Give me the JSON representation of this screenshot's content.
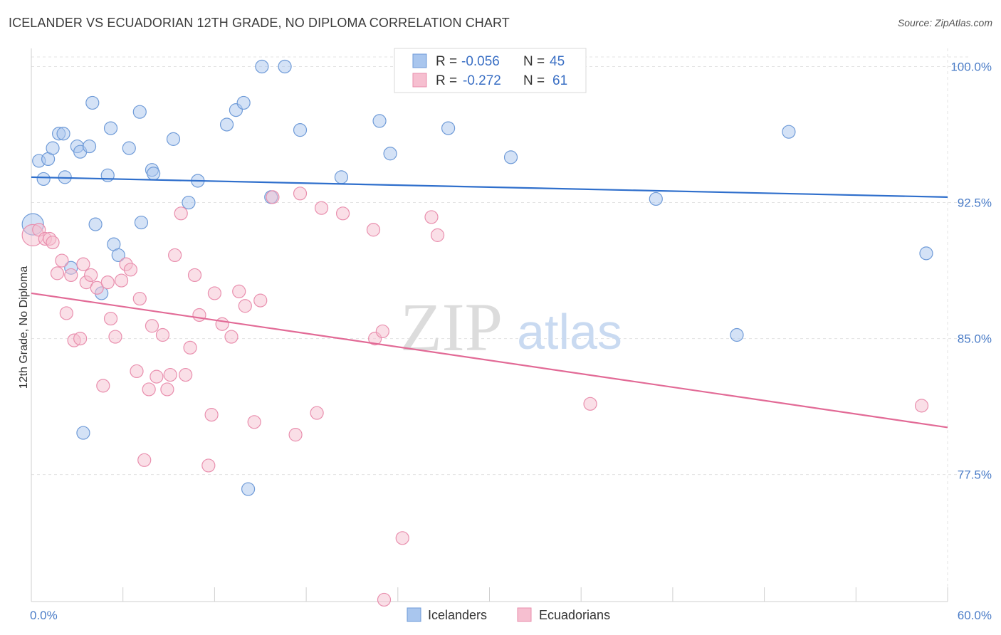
{
  "title": "ICELANDER VS ECUADORIAN 12TH GRADE, NO DIPLOMA CORRELATION CHART",
  "source": "Source: ZipAtlas.com",
  "watermark": {
    "zip": "ZIP",
    "atlas": "atlas"
  },
  "colors": {
    "blue_fill": "#a9c6ee",
    "blue_stroke": "#6f9bd8",
    "blue_line": "#2f6fcc",
    "pink_fill": "#f6bfd0",
    "pink_stroke": "#e98fae",
    "pink_line": "#e26a96",
    "tick_text": "#4a7cc7",
    "grid": "#e3e3e3"
  },
  "legend": {
    "rows": [
      {
        "r_label": "R =",
        "r_value": "-0.056",
        "n_label": "N =",
        "n_value": "45"
      },
      {
        "r_label": "R =",
        "r_value": "-0.272",
        "n_label": "N =",
        "n_value": "61"
      }
    ]
  },
  "chart_data": {
    "type": "scatter",
    "title": "ICELANDER VS ECUADORIAN 12TH GRADE, NO DIPLOMA CORRELATION CHART",
    "xlabel": "",
    "ylabel": "12th Grade, No Diploma",
    "xlim": [
      0,
      60
    ],
    "ylim": [
      70.5,
      101
    ],
    "x_tick_labels": [
      "0.0%",
      "60.0%"
    ],
    "y_ticks": [
      77.5,
      85.0,
      92.5,
      100.0
    ],
    "y_tick_labels": [
      "77.5%",
      "85.0%",
      "92.5%",
      "100.0%"
    ],
    "grid": true,
    "legend_position": "top-center",
    "series": [
      {
        "name": "Icelanders",
        "points": [
          [
            0.1,
            91.3
          ],
          [
            0.5,
            94.8
          ],
          [
            0.8,
            93.8
          ],
          [
            1.1,
            94.9
          ],
          [
            1.4,
            95.5
          ],
          [
            1.8,
            96.3
          ],
          [
            2.1,
            96.3
          ],
          [
            2.2,
            93.9
          ],
          [
            2.6,
            88.9
          ],
          [
            3.0,
            95.6
          ],
          [
            3.2,
            95.3
          ],
          [
            3.4,
            79.8
          ],
          [
            3.8,
            95.6
          ],
          [
            4.0,
            98.0
          ],
          [
            4.2,
            91.3
          ],
          [
            4.6,
            87.5
          ],
          [
            5.0,
            94.0
          ],
          [
            5.2,
            96.6
          ],
          [
            5.4,
            90.2
          ],
          [
            5.7,
            89.6
          ],
          [
            6.4,
            95.5
          ],
          [
            7.1,
            97.5
          ],
          [
            7.2,
            91.4
          ],
          [
            7.9,
            94.3
          ],
          [
            8.0,
            94.1
          ],
          [
            9.3,
            96.0
          ],
          [
            10.3,
            92.5
          ],
          [
            10.9,
            93.7
          ],
          [
            12.8,
            96.8
          ],
          [
            13.4,
            97.6
          ],
          [
            13.9,
            98.0
          ],
          [
            14.2,
            76.7
          ],
          [
            15.1,
            100.0
          ],
          [
            15.7,
            92.8
          ],
          [
            16.6,
            100.0
          ],
          [
            17.6,
            96.5
          ],
          [
            20.3,
            93.9
          ],
          [
            22.8,
            97.0
          ],
          [
            23.5,
            95.2
          ],
          [
            27.3,
            96.6
          ],
          [
            31.4,
            95.0
          ],
          [
            40.9,
            92.7
          ],
          [
            46.2,
            85.2
          ],
          [
            49.6,
            96.4
          ],
          [
            58.6,
            89.7
          ]
        ]
      },
      {
        "name": "Ecuadorians",
        "points": [
          [
            0.1,
            90.7
          ],
          [
            0.5,
            91.0
          ],
          [
            0.9,
            90.5
          ],
          [
            1.2,
            90.5
          ],
          [
            1.4,
            90.3
          ],
          [
            1.7,
            88.6
          ],
          [
            2.0,
            89.3
          ],
          [
            2.3,
            86.4
          ],
          [
            2.6,
            88.5
          ],
          [
            2.8,
            84.9
          ],
          [
            3.2,
            85.0
          ],
          [
            3.4,
            89.1
          ],
          [
            3.6,
            88.1
          ],
          [
            3.9,
            88.5
          ],
          [
            4.3,
            87.8
          ],
          [
            4.7,
            82.4
          ],
          [
            5.0,
            88.1
          ],
          [
            5.2,
            86.1
          ],
          [
            5.5,
            85.1
          ],
          [
            5.9,
            88.2
          ],
          [
            6.2,
            89.1
          ],
          [
            6.5,
            88.8
          ],
          [
            6.9,
            83.2
          ],
          [
            7.1,
            87.2
          ],
          [
            7.4,
            78.3
          ],
          [
            7.7,
            82.2
          ],
          [
            7.9,
            85.7
          ],
          [
            8.2,
            82.9
          ],
          [
            8.6,
            85.2
          ],
          [
            8.9,
            82.2
          ],
          [
            9.1,
            83.0
          ],
          [
            9.4,
            89.6
          ],
          [
            9.8,
            91.9
          ],
          [
            10.1,
            83.0
          ],
          [
            10.4,
            84.5
          ],
          [
            10.7,
            88.5
          ],
          [
            11.0,
            86.3
          ],
          [
            11.6,
            78.0
          ],
          [
            11.8,
            80.8
          ],
          [
            12.0,
            87.5
          ],
          [
            12.5,
            85.8
          ],
          [
            13.1,
            85.1
          ],
          [
            13.6,
            87.6
          ],
          [
            14.0,
            86.8
          ],
          [
            14.6,
            80.4
          ],
          [
            15.0,
            87.1
          ],
          [
            15.8,
            92.8
          ],
          [
            17.6,
            93.0
          ],
          [
            17.3,
            79.7
          ],
          [
            18.7,
            80.9
          ],
          [
            19.0,
            92.2
          ],
          [
            20.4,
            91.9
          ],
          [
            22.4,
            91.0
          ],
          [
            22.5,
            85.0
          ],
          [
            23.0,
            85.4
          ],
          [
            23.1,
            70.6
          ],
          [
            24.3,
            74.0
          ],
          [
            26.2,
            91.7
          ],
          [
            26.6,
            90.7
          ],
          [
            36.6,
            81.4
          ],
          [
            58.3,
            81.3
          ]
        ]
      }
    ],
    "trend_lines": [
      {
        "series": "Icelanders",
        "x": [
          0,
          60
        ],
        "y": [
          93.9,
          92.8
        ]
      },
      {
        "series": "Ecuadorians",
        "x": [
          0,
          60
        ],
        "y": [
          87.5,
          80.1
        ]
      }
    ]
  }
}
